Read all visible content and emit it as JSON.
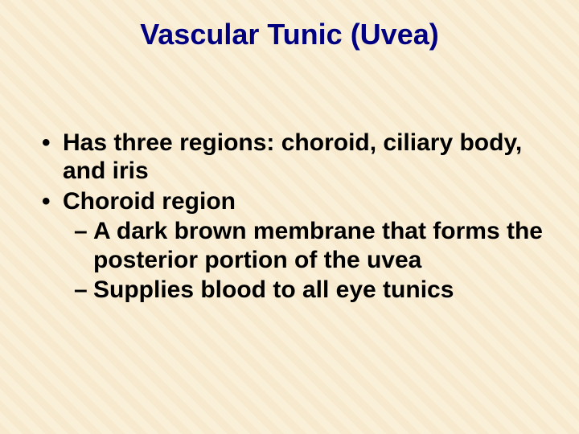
{
  "title": "Vascular Tunic (Uvea)",
  "title_color": "#000080",
  "background_color": "#f9eed6",
  "text_color": "#000000",
  "font_family": "Arial",
  "title_fontsize": 36,
  "body_fontsize": 30,
  "body_fontweight": "bold",
  "bullets": {
    "level1": [
      {
        "text": "Has three regions: choroid, ciliary body, and iris"
      },
      {
        "text": "Choroid region",
        "children": [
          {
            "text": "A dark brown membrane that forms the posterior portion of the uvea"
          },
          {
            "text": "Supplies blood to all eye tunics"
          }
        ]
      }
    ]
  },
  "bullet_markers": {
    "level1": "•",
    "level2": "–"
  }
}
